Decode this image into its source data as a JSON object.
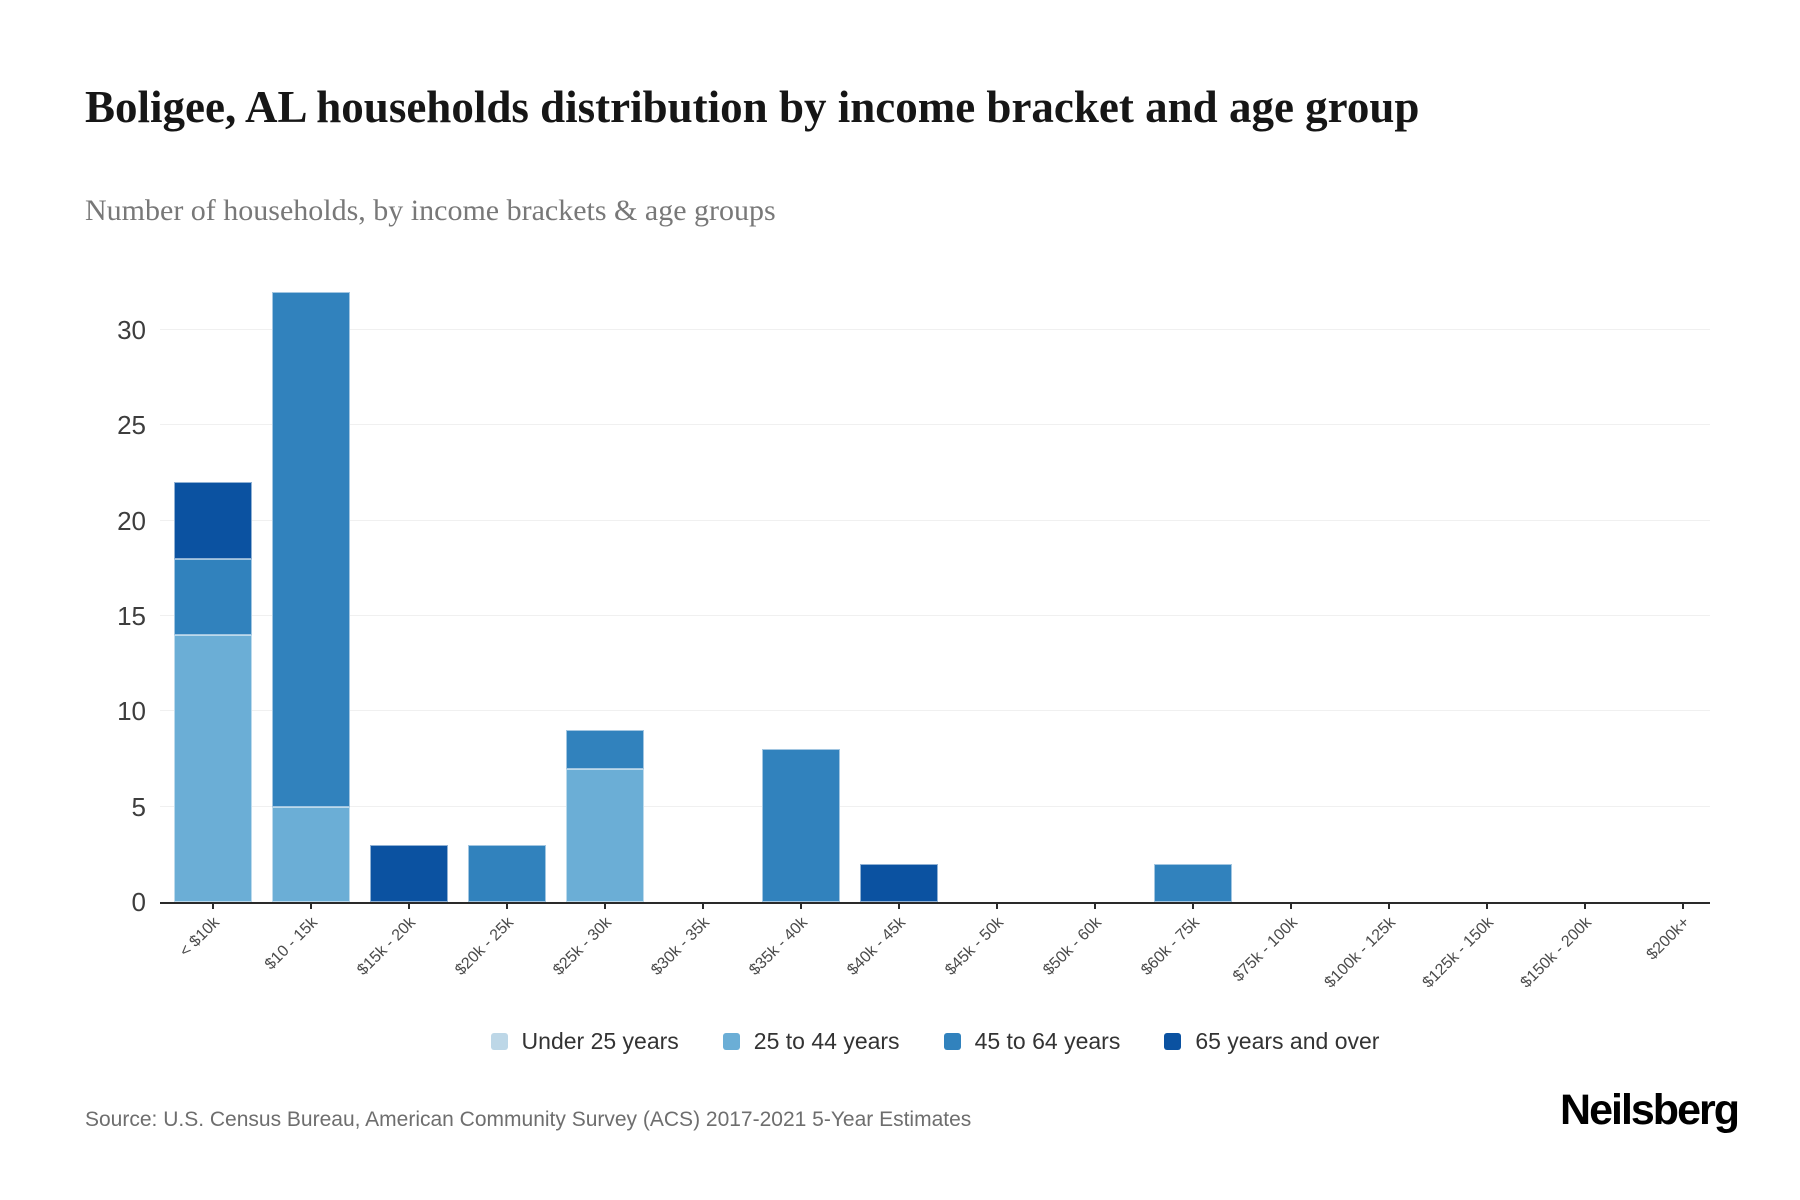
{
  "header": {
    "title": "Boligee, AL households distribution by income bracket and age group",
    "subtitle": "Number of households, by income brackets & age groups"
  },
  "chart_data": {
    "type": "bar",
    "stacked": true,
    "title": "Boligee, AL households distribution by income bracket and age group",
    "subtitle": "Number of households, by income brackets & age groups",
    "xlabel": "",
    "ylabel": "",
    "yticks": [
      0,
      5,
      10,
      15,
      20,
      25,
      30
    ],
    "ylim": [
      0,
      33
    ],
    "grid": true,
    "legend_position": "bottom",
    "categories": [
      "< $10k",
      "$10 - 15k",
      "$15k - 20k",
      "$20k - 25k",
      "$25k - 30k",
      "$30k - 35k",
      "$35k - 40k",
      "$40k - 45k",
      "$45k - 50k",
      "$50k - 60k",
      "$60k - 75k",
      "$75k - 100k",
      "$100k - 125k",
      "$125k - 150k",
      "$150k - 200k",
      "$200k+"
    ],
    "series": [
      {
        "name": "Under 25 years",
        "color": "#bdd7e7",
        "values": [
          0,
          0,
          0,
          0,
          0,
          0,
          0,
          0,
          0,
          0,
          0,
          0,
          0,
          0,
          0,
          0
        ]
      },
      {
        "name": "25 to 44 years",
        "color": "#6baed6",
        "values": [
          14,
          5,
          0,
          0,
          7,
          0,
          0,
          0,
          0,
          0,
          0,
          0,
          0,
          0,
          0,
          0
        ]
      },
      {
        "name": "45 to 64 years",
        "color": "#3182bd",
        "values": [
          4,
          27,
          0,
          3,
          2,
          0,
          8,
          0,
          0,
          0,
          2,
          0,
          0,
          0,
          0,
          0
        ]
      },
      {
        "name": "65 years and over",
        "color": "#0b52a1",
        "values": [
          4,
          0,
          3,
          0,
          0,
          0,
          0,
          2,
          0,
          0,
          0,
          0,
          0,
          0,
          0,
          0
        ]
      }
    ],
    "totals": [
      22,
      32,
      3,
      3,
      9,
      0,
      8,
      2,
      0,
      0,
      2,
      0,
      0,
      0,
      0,
      0
    ]
  },
  "footer": {
    "source": "Source: U.S. Census Bureau, American Community Survey (ACS) 2017-2021 5-Year Estimates",
    "brand": "Neilsberg"
  }
}
